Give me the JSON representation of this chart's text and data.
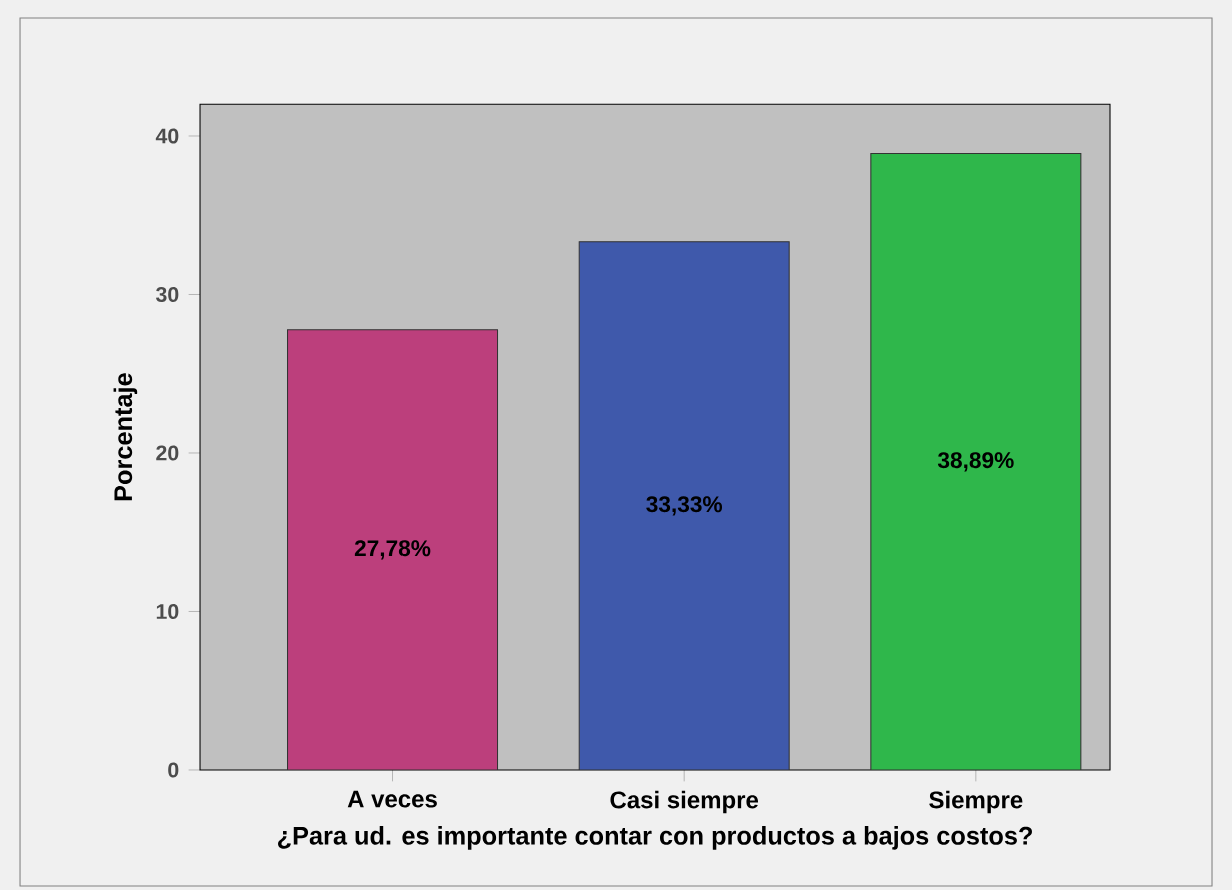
{
  "chart_data": {
    "type": "bar",
    "categories": [
      "A veces",
      "Casi siempre",
      "Siempre"
    ],
    "values": [
      27.78,
      33.33,
      38.89
    ],
    "colors": [
      "#bc3f7c",
      "#3f59ab",
      "#2fb74b"
    ],
    "value_labels": [
      "27,78%",
      "33,33%",
      "38,89%"
    ],
    "xlabel": "¿Para ud. es importante contar con productos a bajos costos?",
    "ylabel": "Porcentaje",
    "ylim": [
      0,
      42
    ],
    "yticks": [
      0,
      10,
      20,
      30,
      40
    ],
    "grid": false
  }
}
